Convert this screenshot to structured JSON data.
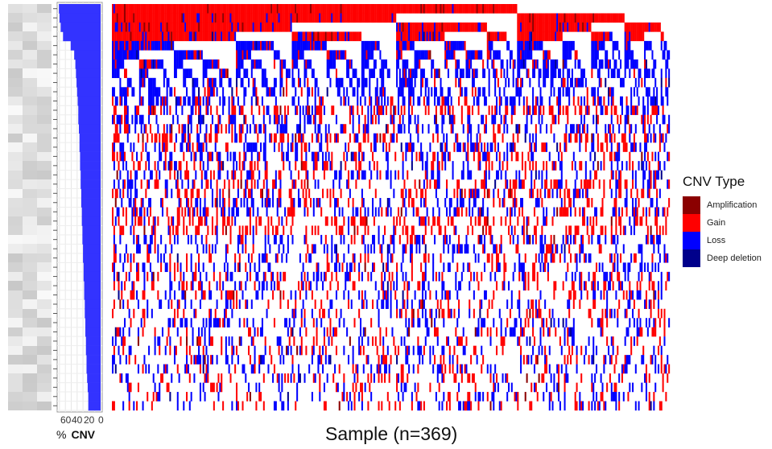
{
  "chart_data": {
    "type": "heatmap",
    "title": "",
    "xlabel": "Sample (n=369)",
    "n_samples": 369,
    "side_bar": {
      "label_prefix": "%",
      "label": "CNV",
      "ticks": [
        "60",
        "40",
        "20",
        "0"
      ],
      "tick_values": [
        60,
        40,
        20,
        0
      ],
      "xlim": [
        75,
        0
      ],
      "color": "#3333ff"
    },
    "rows_percent_cnv": [
      71,
      70,
      68,
      64,
      51,
      45,
      43,
      42,
      41,
      40,
      39,
      38,
      38,
      37,
      36,
      36,
      35,
      35,
      34,
      34,
      33,
      33,
      32,
      32,
      31,
      31,
      30,
      30,
      29,
      29,
      28,
      28,
      27,
      27,
      26,
      26,
      25,
      25,
      24,
      24,
      23,
      22,
      21,
      21
    ],
    "rows_gain_fraction": [
      0.97,
      0.96,
      0.9,
      0.8,
      0.15,
      0.2,
      0.15,
      0.12,
      0.2,
      0.15,
      0.25,
      0.7,
      0.3,
      0.3,
      0.6,
      0.35,
      0.4,
      0.55,
      0.3,
      0.65,
      0.7,
      0.4,
      0.45,
      0.8,
      0.85,
      0.3,
      0.3,
      0.45,
      0.35,
      0.5,
      0.55,
      0.5,
      0.4,
      0.6,
      0.3,
      0.5,
      0.55,
      0.45,
      0.5,
      0.35,
      0.6,
      0.4,
      0.5,
      0.45
    ],
    "legend": {
      "title": "CNV Type",
      "items": [
        {
          "label": "Amplification",
          "color": "#8b0000"
        },
        {
          "label": "Gain",
          "color": "#ff0000"
        },
        {
          "label": "Loss",
          "color": "#0000ff"
        },
        {
          "label": "Deep deletion",
          "color": "#00008b"
        }
      ]
    }
  }
}
